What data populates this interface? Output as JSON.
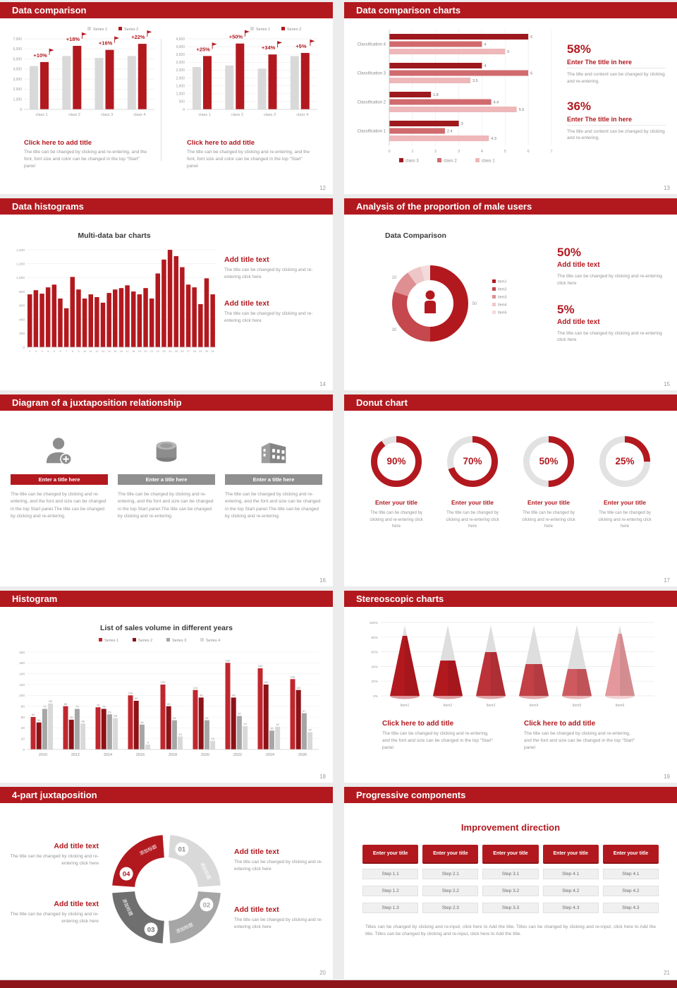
{
  "colors": {
    "primary": "#b2191f",
    "dark_red": "#8c1218",
    "bar_gray": "#d9d9d9",
    "text_gray": "#949494"
  },
  "slides": [
    {
      "title": "Data comparison",
      "page": "12",
      "legend": [
        "Series 1",
        "Series 2"
      ],
      "charts": [
        {
          "categories": [
            "class 1",
            "class 2",
            "class 3",
            "class 4"
          ],
          "series1": [
            4300,
            5300,
            5100,
            5300
          ],
          "series2": [
            4700,
            6300,
            5900,
            6500
          ],
          "growth": [
            "+10%",
            "+18%",
            "+16%",
            "+22%"
          ],
          "ymax": 7000,
          "y_ticks": [
            "7,000",
            "6,000",
            "5,000",
            "4,000",
            "3,000",
            "2,000",
            "1,000",
            "0"
          ],
          "caption_title": "Click here to add title",
          "caption_body": "The title can be changed by clicking and re-entering, and the font, font size and color can be changed in the top \"Start\" panel"
        },
        {
          "categories": [
            "class 1",
            "class 2",
            "class 3",
            "class 4"
          ],
          "series1": [
            2700,
            2800,
            2600,
            3400
          ],
          "series2": [
            3400,
            4200,
            3500,
            3600
          ],
          "growth": [
            "+25%",
            "+50%",
            "+34%",
            "+5%"
          ],
          "ymax": 4500,
          "y_ticks": [
            "4,500",
            "4,000",
            "3,500",
            "3,000",
            "2,500",
            "2,000",
            "1,500",
            "1,000",
            "500",
            "0"
          ],
          "caption_title": "Click here to add title",
          "caption_body": "The title can be changed by clicking and re-entering, and the font, font size and color can be changed in the top \"Start\" panel"
        }
      ]
    },
    {
      "title": "Data comparison charts",
      "page": "13",
      "chart": {
        "categories": [
          "Classification 4",
          "Classification 3",
          "Classification 2",
          "Classification 1"
        ],
        "series": [
          {
            "name": "class 3",
            "color": "#9e191e",
            "values": [
              6,
              4,
              1.8,
              3
            ]
          },
          {
            "name": "class 2",
            "color": "#d06a6e",
            "values": [
              4,
              6,
              4.4,
              2.4
            ]
          },
          {
            "name": "class 1",
            "color": "#eeb7b9",
            "values": [
              5,
              3.5,
              5.5,
              4.3
            ]
          }
        ],
        "xmax": 7,
        "x_ticks": [
          "0",
          "1",
          "2",
          "3",
          "4",
          "5",
          "6",
          "7"
        ]
      },
      "stats": [
        {
          "value": "58%",
          "title": "Enter The title in here",
          "body": "The title and content can be changed by clicking and re-entering."
        },
        {
          "value": "36%",
          "title": "Enter The title in here",
          "body": "The title and content can be changed by clicking and re-entering."
        }
      ]
    },
    {
      "title": "Data histograms",
      "page": "14",
      "chart_title": "Multi-data bar charts",
      "ymax": 1400,
      "y_ticks": [
        "1,400",
        "1,200",
        "1,000",
        "800",
        "600",
        "400",
        "200",
        "0"
      ],
      "values": [
        760,
        820,
        770,
        860,
        900,
        700,
        560,
        1010,
        830,
        700,
        760,
        720,
        640,
        780,
        830,
        850,
        890,
        800,
        760,
        850,
        700,
        1060,
        1260,
        1400,
        1310,
        1150,
        900,
        860,
        620,
        990,
        760
      ],
      "blocks": [
        {
          "title": "Add title text",
          "body": "The title can be changed by clicking and re-entering click here"
        },
        {
          "title": "Add title text",
          "body": "The title can be changed by clicking and re-entering click here"
        }
      ]
    },
    {
      "title": "Analysis of the proportion of male users",
      "page": "15",
      "chart_title": "Data Comparison",
      "donut": {
        "values": [
          50,
          30,
          10,
          6,
          4
        ],
        "labels": [
          "50",
          "30",
          "10",
          "",
          ""
        ],
        "colors": [
          "#b2191f",
          "#c4484d",
          "#de8f92",
          "#efc6c7",
          "#f3dadb"
        ],
        "legend": [
          "Item1",
          "Item2",
          "Item3",
          "Item4",
          "Item5"
        ]
      },
      "stats": [
        {
          "value": "50%",
          "title": "Add title text",
          "body": "The title can be changed by clicking and re-entering click here"
        },
        {
          "value": "5%",
          "title": "Add title text",
          "body": "The title can be changed by clicking and re-entering click here"
        }
      ]
    },
    {
      "title": "Diagram of a juxtaposition relationship",
      "page": "16",
      "items": [
        {
          "icon": "nurse-icon",
          "banner": "Enter a title here",
          "style": "red",
          "body": "The title can be changed by clicking and re-entering, and the font and size can be changed in the top Start panel.The title can be changed by clicking and re-entering."
        },
        {
          "icon": "database-icon",
          "banner": "Enter a title here",
          "style": "gray",
          "body": "The title can be changed by clicking and re-entering, and the font and size can be changed in the top Start panel.The title can be changed by clicking and re-entering."
        },
        {
          "icon": "building-icon",
          "banner": "Enter a title here",
          "style": "gray",
          "body": "The title can be changed by clicking and re-entering, and the font and size can be changed in the top Start panel.The title can be changed by clicking and re-entering."
        }
      ]
    },
    {
      "title": "Donut chart",
      "page": "17",
      "gauges": [
        {
          "pct": 90,
          "label": "90%",
          "title": "Enter your title",
          "body": "The title can be changed by clicking and re-entering click here"
        },
        {
          "pct": 70,
          "label": "70%",
          "title": "Enter your title",
          "body": "The title can be changed by clicking and re-entering click here"
        },
        {
          "pct": 50,
          "label": "50%",
          "title": "Enter your title",
          "body": "The title can be changed by clicking and re-entering click here"
        },
        {
          "pct": 25,
          "label": "25%",
          "title": "Enter your title",
          "body": "The title can be changed by clicking and re-entering click here"
        }
      ]
    },
    {
      "title": "Histogram",
      "page": "18",
      "chart_title": "List of sales volume in different years",
      "categories": [
        "2010",
        "2012",
        "2014",
        "2016",
        "2018",
        "2020",
        "2022",
        "2024",
        "2026"
      ],
      "ymax": 180,
      "series": [
        {
          "name": "Series 1",
          "color": "#c0272d",
          "values": [
            60,
            80,
            78,
            100,
            120,
            110,
            160,
            150,
            130
          ]
        },
        {
          "name": "Series 2",
          "color": "#8c1218",
          "values": [
            50,
            55,
            75,
            90,
            80,
            96,
            96,
            120,
            110
          ]
        },
        {
          "name": "Series 3",
          "color": "#a6a6a6",
          "values": [
            75,
            75,
            65,
            46,
            54,
            54,
            62,
            35,
            67
          ]
        },
        {
          "name": "Series 4",
          "color": "#d9d9d9",
          "values": [
            85,
            48,
            58,
            9,
            24,
            16,
            43,
            42,
            32
          ]
        }
      ]
    },
    {
      "title": "Stereoscopic charts",
      "page": "19",
      "y_ticks": [
        "0%",
        "20%",
        "40%",
        "60%",
        "80%",
        "100%"
      ],
      "cones": {
        "labels": [
          "Item1",
          "Item2",
          "Item3",
          "Item4",
          "Item5",
          "Item6"
        ],
        "fills": [
          0.85,
          0.5,
          0.62,
          0.45,
          0.38,
          0.88
        ],
        "colors": [
          "#b2191f",
          "#b2191f",
          "#bb3238",
          "#c24046",
          "#ce5a5f",
          "#e4989b"
        ]
      },
      "captions": [
        {
          "title": "Click here to add title",
          "body": "The title can be changed by clicking and re-entering, and the font and size can be changed in the top \"Start\" panel"
        },
        {
          "title": "Click here to add title",
          "body": "The title can be changed by clicking and re-entering, and the font and size can be changed in the top \"Start\" panel"
        }
      ]
    },
    {
      "title": "4-part juxtaposition",
      "page": "20",
      "ring": [
        {
          "num": "01",
          "label": "添加标题",
          "color": "#d9d9d9",
          "num_color": "#8c8c8c"
        },
        {
          "num": "02",
          "label": "添加标题",
          "color": "#a6a6a6",
          "num_color": "#a6a6a6"
        },
        {
          "num": "03",
          "label": "添加标题",
          "color": "#6f6f6f",
          "num_color": "#6f6f6f"
        },
        {
          "num": "04",
          "label": "添加标题",
          "color": "#b2191f",
          "num_color": "#b2191f"
        }
      ],
      "left_blocks": [
        {
          "title": "Add title text",
          "body": "The title can be changed by clicking and re-entering click here"
        },
        {
          "title": "Add title text",
          "body": "The title can be changed by clicking and re-entering click here"
        }
      ],
      "right_blocks": [
        {
          "title": "Add title text",
          "body": "The title can be changed by clicking and re-entering click here"
        },
        {
          "title": "Add title text",
          "body": "The title can be changed by clicking and re-entering click here"
        }
      ]
    },
    {
      "title": "Progressive components",
      "page": "21",
      "heading": "Improvement direction",
      "columns": [
        {
          "button": "Enter your title",
          "steps": [
            "Step 1.1",
            "Step 1.2",
            "Step 1.3"
          ]
        },
        {
          "button": "Enter your title",
          "steps": [
            "Step 2.1",
            "Step 2.2",
            "Step 2.3"
          ]
        },
        {
          "button": "Enter your title",
          "steps": [
            "Step 3.1",
            "Step 3.2",
            "Step 3.3"
          ]
        },
        {
          "button": "Enter your title",
          "steps": [
            "Step 4.1",
            "Step 4.2",
            "Step 4.3"
          ]
        },
        {
          "button": "Enter your title",
          "steps": [
            "Step 4.1",
            "Step 4.2",
            "Step 4.3"
          ]
        }
      ],
      "footer": "Titles can be changed by clicking and re-input, click here to Add the title. Titles can be changed by clicking and re-input, click here to Add the title. Titles can be changed by clicking and re-input, click here to Add the title."
    }
  ]
}
